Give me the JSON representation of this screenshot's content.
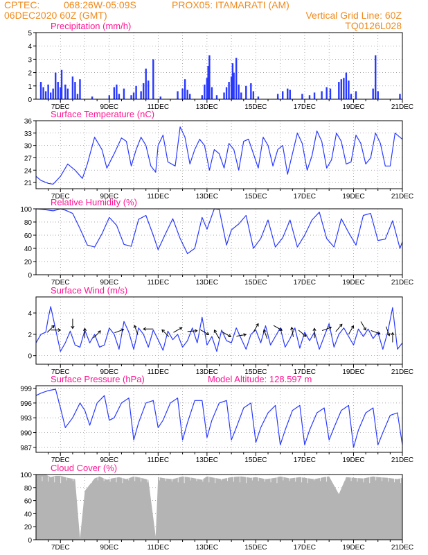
{
  "header": {
    "line1_left": "CPTEC:",
    "coords": "068:26W-05:09S",
    "station": "PROX05: ITAMARATI (AM)",
    "line2_left": "06DEC2020 60Z (GMT)",
    "grid_note": "Vertical Grid Line: 60Z",
    "code": "TQ0126L028"
  },
  "x_ticks": [
    "7DEC",
    "9DEC",
    "11DEC",
    "13DEC",
    "15DEC",
    "17DEC",
    "19DEC",
    "21DEC"
  ],
  "chart_data": [
    {
      "id": "precip",
      "type": "bar",
      "title": "Precipitation (mm/h)",
      "ylim": [
        0,
        5
      ],
      "yticks": [
        "0",
        "1",
        "2",
        "3",
        "4",
        "5"
      ],
      "bars": [
        [
          6.2,
          1.3
        ],
        [
          6.3,
          0.9
        ],
        [
          6.4,
          0.6
        ],
        [
          6.5,
          1.1
        ],
        [
          6.6,
          0.5
        ],
        [
          6.7,
          0.8
        ],
        [
          6.8,
          2.0
        ],
        [
          6.9,
          1.3
        ],
        [
          7.0,
          0.9
        ],
        [
          7.05,
          2.2
        ],
        [
          7.2,
          1.1
        ],
        [
          7.3,
          0.8
        ],
        [
          7.5,
          1.7
        ],
        [
          7.6,
          1.3
        ],
        [
          7.7,
          0.4
        ],
        [
          7.8,
          1.5
        ],
        [
          8.3,
          0.2
        ],
        [
          9.0,
          0.3
        ],
        [
          9.2,
          0.9
        ],
        [
          9.3,
          1.1
        ],
        [
          9.4,
          0.4
        ],
        [
          9.6,
          0.8
        ],
        [
          9.9,
          0.3
        ],
        [
          10.0,
          0.5
        ],
        [
          10.1,
          1.0
        ],
        [
          10.3,
          0.6
        ],
        [
          10.4,
          1.2
        ],
        [
          10.5,
          2.3
        ],
        [
          10.6,
          1.4
        ],
        [
          10.8,
          3.0
        ],
        [
          11.1,
          0.2
        ],
        [
          11.8,
          0.6
        ],
        [
          12.0,
          0.8
        ],
        [
          12.1,
          1.5
        ],
        [
          12.2,
          0.7
        ],
        [
          12.3,
          0.4
        ],
        [
          12.8,
          0.3
        ],
        [
          12.9,
          1.1
        ],
        [
          13.0,
          1.6
        ],
        [
          13.05,
          2.5
        ],
        [
          13.1,
          3.3
        ],
        [
          13.2,
          0.9
        ],
        [
          13.4,
          0.3
        ],
        [
          13.7,
          0.5
        ],
        [
          13.8,
          0.9
        ],
        [
          13.9,
          1.3
        ],
        [
          14.0,
          1.7
        ],
        [
          14.05,
          2.7
        ],
        [
          14.1,
          2.0
        ],
        [
          14.2,
          3.1
        ],
        [
          14.3,
          1.1
        ],
        [
          14.4,
          0.5
        ],
        [
          14.6,
          1.0
        ],
        [
          14.8,
          1.2
        ],
        [
          14.9,
          0.6
        ],
        [
          15.1,
          0.2
        ],
        [
          15.9,
          0.4
        ],
        [
          16.1,
          0.6
        ],
        [
          16.3,
          0.8
        ],
        [
          16.4,
          0.7
        ],
        [
          16.9,
          0.4
        ],
        [
          17.2,
          0.3
        ],
        [
          17.4,
          0.5
        ],
        [
          17.7,
          0.6
        ],
        [
          17.9,
          0.9
        ],
        [
          18.05,
          0.8
        ],
        [
          18.4,
          1.3
        ],
        [
          18.5,
          1.5
        ],
        [
          18.6,
          1.6
        ],
        [
          18.7,
          2.0
        ],
        [
          18.8,
          1.4
        ],
        [
          18.9,
          0.4
        ],
        [
          19.1,
          0.6
        ],
        [
          19.8,
          0.8
        ],
        [
          19.9,
          3.3
        ],
        [
          20.0,
          0.6
        ],
        [
          20.9,
          0.4
        ]
      ]
    },
    {
      "id": "temp",
      "type": "line",
      "title": "Surface Temperature (nC)",
      "ylim": [
        19.5,
        36
      ],
      "yticks": [
        21,
        24,
        27,
        30,
        33,
        36
      ],
      "x": [
        6,
        6.2,
        6.5,
        6.7,
        7.0,
        7.3,
        7.6,
        7.9,
        8.1,
        8.4,
        8.7,
        8.9,
        9.2,
        9.5,
        9.7,
        9.9,
        10.1,
        10.3,
        10.5,
        10.7,
        10.9,
        11.0,
        11.2,
        11.4,
        11.7,
        11.9,
        12.1,
        12.3,
        12.5,
        12.7,
        12.9,
        13.1,
        13.3,
        13.5,
        13.7,
        13.9,
        14.1,
        14.3,
        14.5,
        14.7,
        14.9,
        15.1,
        15.3,
        15.5,
        15.7,
        15.9,
        16.1,
        16.3,
        16.5,
        16.7,
        16.9,
        17.1,
        17.3,
        17.5,
        17.7,
        17.9,
        18.1,
        18.3,
        18.5,
        18.7,
        18.9,
        19.1,
        19.3,
        19.5,
        19.7,
        19.9,
        20.1,
        20.3,
        20.5,
        20.7,
        20.9,
        21.0
      ],
      "y": [
        22.5,
        21.5,
        20.8,
        20.6,
        22.5,
        25.5,
        24.0,
        22.0,
        25.5,
        32.0,
        29.0,
        24.5,
        28.0,
        31.8,
        31.0,
        25.0,
        29.0,
        32.0,
        30.0,
        25.0,
        23.5,
        30.0,
        32.5,
        26.0,
        25.0,
        34.5,
        32.0,
        25.5,
        29.0,
        31.5,
        30.0,
        24.0,
        29.0,
        28.0,
        24.5,
        30.5,
        29.0,
        24.0,
        31.0,
        31.5,
        28.0,
        24.5,
        32.0,
        30.0,
        25.0,
        29.0,
        30.0,
        23.0,
        28.0,
        33.0,
        30.5,
        24.0,
        27.5,
        33.5,
        31.0,
        24.5,
        26.5,
        33.0,
        31.0,
        25.5,
        26.0,
        32.5,
        30.5,
        25.5,
        27.0,
        33.0,
        30.5,
        25.0,
        25.0,
        33.0,
        32.0,
        31.5
      ]
    },
    {
      "id": "rh",
      "type": "line",
      "title": "Relative Humidity (%)",
      "ylim": [
        0,
        100
      ],
      "yticks": [
        0,
        20,
        40,
        60,
        80,
        100
      ],
      "x": [
        6,
        6.3,
        6.7,
        7.0,
        7.2,
        7.5,
        7.8,
        8.1,
        8.4,
        8.7,
        9.0,
        9.3,
        9.6,
        9.9,
        10.2,
        10.5,
        10.8,
        11.0,
        11.3,
        11.6,
        11.9,
        12.2,
        12.5,
        12.8,
        13.0,
        13.3,
        13.5,
        13.8,
        14.0,
        14.3,
        14.6,
        14.9,
        15.2,
        15.5,
        15.8,
        16.1,
        16.4,
        16.7,
        17.0,
        17.3,
        17.6,
        17.9,
        18.2,
        18.5,
        18.8,
        19.1,
        19.4,
        19.7,
        20.0,
        20.3,
        20.6,
        20.9,
        21.0
      ],
      "y": [
        100,
        99,
        97,
        100,
        98,
        93,
        70,
        45,
        42,
        62,
        87,
        75,
        46,
        43,
        84,
        90,
        60,
        38,
        62,
        85,
        55,
        32,
        40,
        87,
        69,
        100,
        99,
        45,
        68,
        77,
        90,
        40,
        55,
        83,
        42,
        56,
        83,
        42,
        60,
        83,
        95,
        55,
        42,
        85,
        64,
        45,
        90,
        93,
        52,
        54,
        82,
        40,
        50
      ]
    },
    {
      "id": "wind",
      "type": "line",
      "title": "Surface Wind (m/s)",
      "ylim": [
        -0.8,
        5.5
      ],
      "yticks": [
        0,
        2,
        4
      ],
      "x": [
        6,
        6.2,
        6.4,
        6.5,
        6.6,
        6.8,
        7.0,
        7.2,
        7.4,
        7.6,
        7.8,
        8.0,
        8.2,
        8.4,
        8.6,
        8.8,
        9.0,
        9.2,
        9.4,
        9.6,
        9.8,
        10.0,
        10.2,
        10.4,
        10.6,
        10.8,
        11.0,
        11.2,
        11.4,
        11.6,
        11.8,
        12.0,
        12.2,
        12.4,
        12.6,
        12.8,
        13.0,
        13.2,
        13.4,
        13.6,
        13.8,
        14.0,
        14.2,
        14.4,
        14.6,
        14.8,
        15.0,
        15.2,
        15.4,
        15.6,
        15.8,
        16.0,
        16.2,
        16.4,
        16.6,
        16.8,
        17.0,
        17.2,
        17.4,
        17.6,
        17.8,
        18.0,
        18.2,
        18.4,
        18.6,
        18.8,
        19.0,
        19.2,
        19.4,
        19.6,
        19.8,
        20.0,
        20.2,
        20.4,
        20.6,
        20.8,
        21.0
      ],
      "y": [
        1.2,
        2.0,
        2.2,
        3.5,
        4.6,
        2.5,
        0.4,
        1.2,
        2.3,
        1.0,
        0.8,
        2.4,
        1.2,
        2.0,
        0.8,
        1.0,
        2.6,
        2.0,
        0.6,
        3.2,
        2.2,
        0.6,
        2.6,
        2.0,
        0.8,
        2.4,
        1.5,
        0.5,
        2.3,
        1.5,
        2.0,
        0.8,
        1.4,
        2.6,
        1.2,
        3.6,
        1.0,
        1.8,
        0.4,
        2.4,
        1.4,
        1.2,
        2.6,
        1.6,
        0.6,
        2.0,
        2.4,
        1.2,
        2.8,
        1.0,
        1.8,
        2.6,
        0.8,
        1.6,
        2.6,
        0.7,
        2.2,
        1.4,
        2.2,
        0.6,
        1.8,
        3.0,
        0.8,
        2.0,
        2.6,
        1.8,
        1.0,
        2.5,
        1.8,
        2.5,
        1.6,
        2.2,
        0.6,
        2.2,
        4.5,
        0.6,
        1.2
      ],
      "arrows": [
        [
          6.6,
          2.5,
          45
        ],
        [
          6.8,
          2.4,
          0
        ],
        [
          7.5,
          3.0,
          270
        ],
        [
          8.0,
          2.1,
          90
        ],
        [
          8.5,
          2.0,
          45
        ],
        [
          9.4,
          2.3,
          20
        ],
        [
          10.1,
          2.4,
          110
        ],
        [
          10.6,
          2.5,
          180
        ],
        [
          11.3,
          2.1,
          135
        ],
        [
          11.8,
          2.4,
          30
        ],
        [
          12.4,
          2.3,
          5
        ],
        [
          12.9,
          2.2,
          330
        ],
        [
          13.4,
          2.0,
          120
        ],
        [
          13.8,
          2.0,
          330
        ],
        [
          14.4,
          1.9,
          10
        ],
        [
          15.0,
          2.6,
          60
        ],
        [
          15.4,
          2.0,
          110
        ],
        [
          15.9,
          2.6,
          330
        ],
        [
          16.5,
          2.2,
          100
        ],
        [
          16.9,
          2.1,
          320
        ],
        [
          17.4,
          2.1,
          90
        ],
        [
          17.9,
          2.5,
          20
        ],
        [
          18.4,
          2.6,
          50
        ],
        [
          18.9,
          2.4,
          60
        ],
        [
          19.4,
          2.8,
          300
        ],
        [
          19.9,
          2.2,
          340
        ],
        [
          20.4,
          2.3,
          290
        ],
        [
          20.6,
          1.7,
          90
        ]
      ]
    },
    {
      "id": "pres",
      "type": "line",
      "title": "Surface Pressure (hPa)",
      "annotation": "Model Altitude: 128.597 m",
      "ylim": [
        986,
        999.5
      ],
      "yticks": [
        987,
        990,
        993,
        996,
        999
      ],
      "x": [
        6,
        6.2,
        6.5,
        6.8,
        7.0,
        7.2,
        7.5,
        7.8,
        8.0,
        8.2,
        8.5,
        8.8,
        9.0,
        9.2,
        9.5,
        9.8,
        10.0,
        10.2,
        10.5,
        10.8,
        11.0,
        11.2,
        11.5,
        11.8,
        12.0,
        12.2,
        12.5,
        12.8,
        13.0,
        13.2,
        13.5,
        13.8,
        14.0,
        14.2,
        14.5,
        14.8,
        15.0,
        15.2,
        15.5,
        15.8,
        16.0,
        16.2,
        16.5,
        16.8,
        17.0,
        17.2,
        17.5,
        17.8,
        18.0,
        18.2,
        18.5,
        18.8,
        19.0,
        19.2,
        19.5,
        19.8,
        20.0,
        20.2,
        20.5,
        20.8,
        21.0
      ],
      "y": [
        997.5,
        998,
        998.5,
        998.8,
        995,
        991,
        993,
        996,
        994.5,
        991.5,
        996,
        997.5,
        992.5,
        993,
        996,
        997,
        988.5,
        992,
        996,
        996.5,
        991,
        992.5,
        996,
        997,
        988.5,
        992,
        996.5,
        996.5,
        989,
        992.5,
        996,
        996.5,
        988.5,
        991,
        995,
        996,
        988,
        991,
        994,
        995.5,
        987.5,
        990.5,
        994.5,
        995.5,
        987.5,
        990.5,
        994,
        995,
        988.5,
        991,
        994.5,
        995.5,
        987,
        990.5,
        994,
        995,
        987.5,
        990,
        993.5,
        994,
        987.5
      ]
    },
    {
      "id": "cloud",
      "type": "area",
      "title": "Cloud Cover (%)",
      "ylim": [
        0,
        100
      ],
      "yticks": [
        0,
        20,
        40,
        60,
        80,
        100
      ],
      "x": [
        6,
        6.4,
        6.6,
        6.8,
        7.0,
        7.3,
        7.6,
        7.8,
        8.0,
        8.4,
        8.6,
        8.9,
        9.1,
        9.4,
        9.7,
        10.0,
        10.3,
        10.6,
        10.9,
        11.0,
        11.3,
        11.6,
        12.0,
        12.4,
        12.8,
        13.0,
        13.3,
        13.6,
        14.0,
        14.4,
        14.8,
        15.0,
        15.4,
        15.8,
        16.0,
        16.4,
        16.8,
        17.0,
        17.4,
        17.8,
        18.0,
        18.4,
        18.7,
        19.0,
        19.4,
        19.8,
        20.0,
        20.4,
        20.8,
        21.0
      ],
      "y": [
        100,
        100,
        96,
        98,
        98,
        95,
        93,
        2,
        75,
        94,
        97,
        92,
        94,
        96,
        93,
        97,
        95,
        92,
        5,
        96,
        94,
        93,
        97,
        95,
        92,
        97,
        95,
        93,
        96,
        97,
        95,
        96,
        93,
        95,
        97,
        94,
        96,
        95,
        93,
        96,
        97,
        70,
        96,
        95,
        94,
        97,
        96,
        95,
        93,
        95
      ]
    }
  ]
}
